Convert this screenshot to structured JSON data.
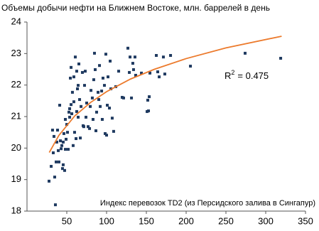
{
  "chart_data": {
    "type": "scatter",
    "title": "Объемы добычи нефти на Ближнем Востоке, млн. баррелей в день",
    "x_label": "Индекс перевозок TD2 (из Персидского залива в Сингапур)",
    "annotation": [
      "R",
      "2",
      "= 0.475"
    ],
    "xlim": [
      0,
      350
    ],
    "ylim": [
      18,
      24
    ],
    "xticks": [
      50,
      100,
      150,
      200,
      250,
      300,
      350
    ],
    "yticks": [
      18,
      19,
      20,
      21,
      22,
      23,
      24
    ],
    "grid": false,
    "series": [
      {
        "type": "scatter",
        "color": "#1f3a60",
        "x": [
          27.7,
          30.4,
          32.1,
          33.0,
          33.9,
          34.8,
          35.7,
          36.6,
          37.5,
          38.4,
          39.3,
          40.2,
          41.1,
          42.0,
          42.9,
          43.8,
          44.6,
          45.5,
          45.5,
          46.4,
          47.3,
          48.2,
          48.2,
          49.1,
          50.0,
          50.9,
          51.8,
          52.7,
          53.6,
          53.6,
          54.5,
          55.4,
          55.4,
          56.3,
          57.1,
          58.0,
          58.9,
          58.9,
          59.8,
          60.7,
          61.6,
          62.5,
          62.5,
          63.4,
          64.3,
          64.3,
          65.2,
          66.1,
          67.0,
          67.9,
          69.6,
          70.5,
          71.4,
          72.3,
          73.2,
          74.1,
          75.0,
          76.8,
          78.6,
          79.5,
          80.4,
          82.1,
          83.0,
          83.9,
          84.8,
          85.7,
          86.6,
          87.5,
          89.3,
          90.2,
          91.1,
          92.0,
          93.8,
          94.6,
          95.5,
          97.3,
          98.2,
          99.1,
          100.0,
          100.9,
          101.8,
          103.6,
          104.5,
          105.4,
          107.1,
          108.9,
          111.6,
          115.2,
          119.6,
          121.4,
          126.8,
          128.6,
          129.5,
          131.3,
          133.0,
          133.9,
          135.7,
          136.6,
          143.8,
          150.9,
          151.8,
          152.7,
          153.6,
          154.5,
          162.5,
          164.3,
          166.1,
          171.4,
          173.2,
          180.4,
          205.4,
          274.1,
          318.8
        ],
        "values": [
          18.95,
          19.42,
          20.57,
          19.85,
          20.37,
          19.08,
          18.2,
          19.56,
          20.19,
          20.57,
          19.92,
          19.56,
          21.36,
          20.23,
          19.98,
          20.08,
          19.35,
          19.47,
          20.19,
          20.46,
          19.29,
          20.91,
          19.96,
          20.28,
          20.75,
          20.5,
          19.96,
          21.14,
          21.25,
          20.98,
          22.22,
          21.38,
          22.56,
          21.09,
          21.77,
          20.08,
          22.26,
          21.47,
          20.5,
          22.89,
          20.3,
          22.44,
          21.16,
          21.88,
          21.99,
          20.98,
          22.67,
          21.54,
          20.32,
          21.32,
          22.4,
          20.71,
          20.68,
          21.99,
          22.44,
          20.98,
          21.43,
          20.68,
          20.62,
          21.32,
          21.83,
          21.59,
          20.91,
          22.17,
          23.01,
          22.49,
          20.55,
          21.14,
          21.77,
          21.54,
          22.62,
          21.32,
          21.81,
          20.91,
          22.22,
          21.99,
          20.46,
          22.98,
          20.41,
          21.36,
          22.26,
          21.27,
          22.76,
          21.88,
          20.95,
          20.53,
          21.95,
          22.44,
          21.61,
          21.59,
          23.17,
          22.4,
          22.89,
          21.59,
          22.69,
          22.49,
          22.89,
          22.31,
          22.38,
          21.16,
          21.52,
          21.18,
          21.63,
          22.38,
          22.94,
          22.42,
          22.26,
          22.89,
          22.35,
          22.94,
          22.6,
          23.01,
          22.85
        ]
      },
      {
        "type": "line",
        "color": "#ec7a2c",
        "x": [
          28,
          40,
          60,
          80,
          100,
          130,
          160,
          200,
          250,
          320
        ],
        "values": [
          19.86,
          20.4,
          21.02,
          21.45,
          21.79,
          22.19,
          22.5,
          22.84,
          23.18,
          23.55
        ]
      }
    ]
  }
}
